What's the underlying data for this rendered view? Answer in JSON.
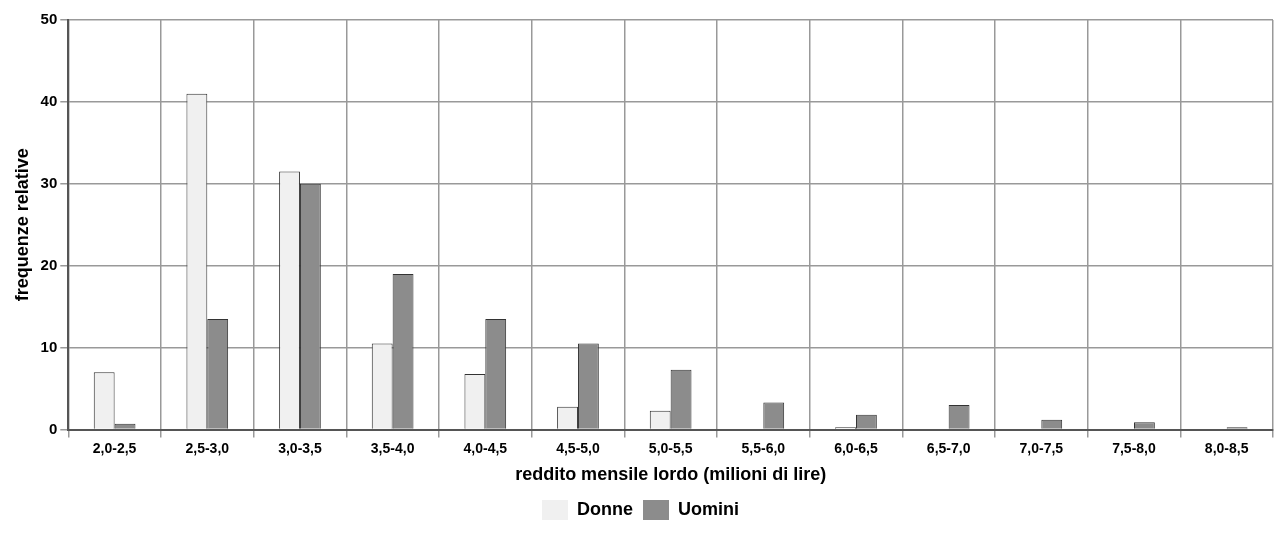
{
  "chart_data": {
    "type": "bar",
    "xlabel": "reddito mensile lordo (milioni di lire)",
    "ylabel": "frequenze relative",
    "categories": [
      "2,0-2,5",
      "2,5-3,0",
      "3,0-3,5",
      "3,5-4,0",
      "4,0-4,5",
      "4,5-5,0",
      "5,0-5,5",
      "5,5-6,0",
      "6,0-6,5",
      "6,5-7,0",
      "7,0-7,5",
      "7,5-8,0",
      "8,0-8,5"
    ],
    "series": [
      {
        "name": "Donne",
        "color": "#f0f0f0",
        "values": [
          7,
          41,
          31.5,
          10.5,
          6.8,
          2.8,
          2.3,
          0,
          0.3,
          0,
          0,
          0,
          0
        ]
      },
      {
        "name": "Uomini",
        "color": "#8c8c8c",
        "values": [
          0.7,
          13.5,
          30,
          19,
          13.5,
          10.5,
          7.3,
          3.3,
          1.8,
          3,
          1.2,
          0.9,
          0.3
        ]
      }
    ],
    "ylim": [
      0,
      50
    ],
    "yticks": [
      0,
      10,
      20,
      30,
      40,
      50
    ],
    "grid": true,
    "legend": "bottom"
  }
}
